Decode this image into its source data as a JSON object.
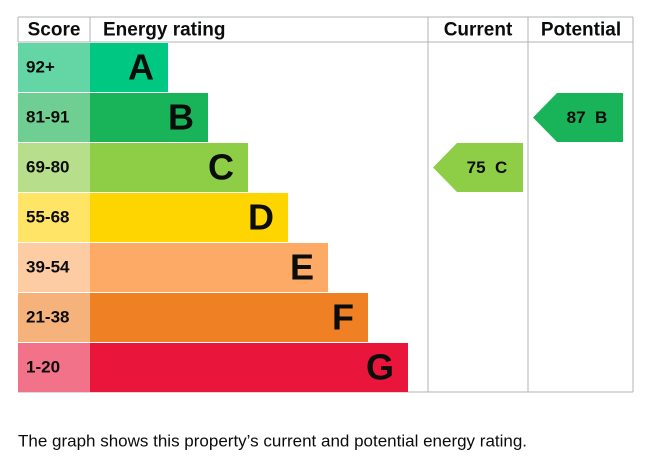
{
  "header": {
    "score": "Score",
    "rating": "Energy rating",
    "current": "Current",
    "potential": "Potential"
  },
  "bands": [
    {
      "range": "92+",
      "letter": "A"
    },
    {
      "range": "81-91",
      "letter": "B"
    },
    {
      "range": "69-80",
      "letter": "C"
    },
    {
      "range": "55-68",
      "letter": "D"
    },
    {
      "range": "39-54",
      "letter": "E"
    },
    {
      "range": "21-38",
      "letter": "F"
    },
    {
      "range": "1-20",
      "letter": "G"
    }
  ],
  "current": {
    "value": 75,
    "letter": "C"
  },
  "potential": {
    "value": 87,
    "letter": "B"
  },
  "caption": "The graph shows this property’s current and potential energy rating."
}
